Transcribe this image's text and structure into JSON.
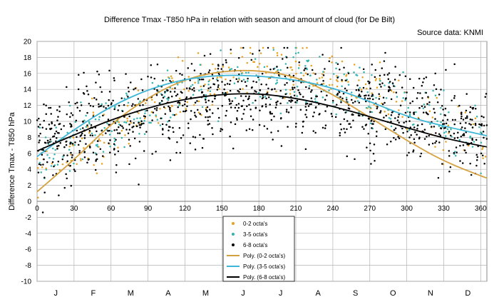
{
  "chart_data": {
    "type": "scatter",
    "title": "Difference Tmax -T850 hPa in relation with season and amount of cloud (for De Bilt)",
    "subtitle": "Source data: KNMI",
    "xlabel": "",
    "ylabel": "Difference Tmax - T850 hPa",
    "xlim": [
      0,
      365
    ],
    "ylim": [
      -10,
      20
    ],
    "x_ticks": [
      0,
      30,
      60,
      90,
      120,
      150,
      180,
      210,
      240,
      270,
      300,
      330,
      360
    ],
    "y_ticks": [
      -10,
      -8,
      -6,
      -4,
      -2,
      0,
      2,
      4,
      6,
      8,
      10,
      12,
      14,
      16,
      18,
      20
    ],
    "months": [
      "J",
      "F",
      "M",
      "A",
      "M",
      "J",
      "J",
      "A",
      "S",
      "O",
      "N",
      "D"
    ],
    "grid": true,
    "legend_position": "bottom-center",
    "series": [
      {
        "name": "0-2 octa's",
        "kind": "scatter",
        "color": "#e8a020",
        "peak": 16.3,
        "amp_low": 12.0,
        "spread": 1.9
      },
      {
        "name": "3-5 octa's",
        "kind": "scatter",
        "color": "#33b3b0",
        "peak": 15.4,
        "amp_low": 9.3,
        "spread": 2.0
      },
      {
        "name": "6-8 octa's",
        "kind": "scatter",
        "color": "#000000",
        "peak": 13.1,
        "amp_low": 5.8,
        "spread": 2.9
      },
      {
        "name": "Poly. (0-2 octa's)",
        "kind": "line",
        "color": "#d4a040",
        "x": [
          0,
          30,
          60,
          90,
          120,
          150,
          180,
          210,
          240,
          270,
          300,
          330,
          365
        ],
        "y": [
          1.2,
          5.2,
          9.7,
          13.0,
          15.3,
          16.3,
          16.4,
          15.6,
          13.4,
          10.5,
          7.6,
          5.0,
          2.9
        ]
      },
      {
        "name": "Poly. (3-5 octa's)",
        "kind": "line",
        "color": "#3fb6d6",
        "x": [
          0,
          30,
          60,
          90,
          120,
          150,
          180,
          210,
          240,
          270,
          300,
          330,
          365
        ],
        "y": [
          5.6,
          9.0,
          11.9,
          14.0,
          15.3,
          15.8,
          15.7,
          15.2,
          14.2,
          12.5,
          10.6,
          9.4,
          8.2
        ]
      },
      {
        "name": "Poly. (6-8 octa's)",
        "kind": "line",
        "color": "#000000",
        "x": [
          0,
          30,
          60,
          90,
          120,
          150,
          180,
          210,
          240,
          270,
          300,
          330,
          365
        ],
        "y": [
          6.3,
          8.3,
          10.2,
          11.7,
          12.8,
          13.4,
          13.5,
          12.9,
          11.9,
          10.6,
          9.2,
          7.9,
          6.8
        ]
      }
    ]
  }
}
